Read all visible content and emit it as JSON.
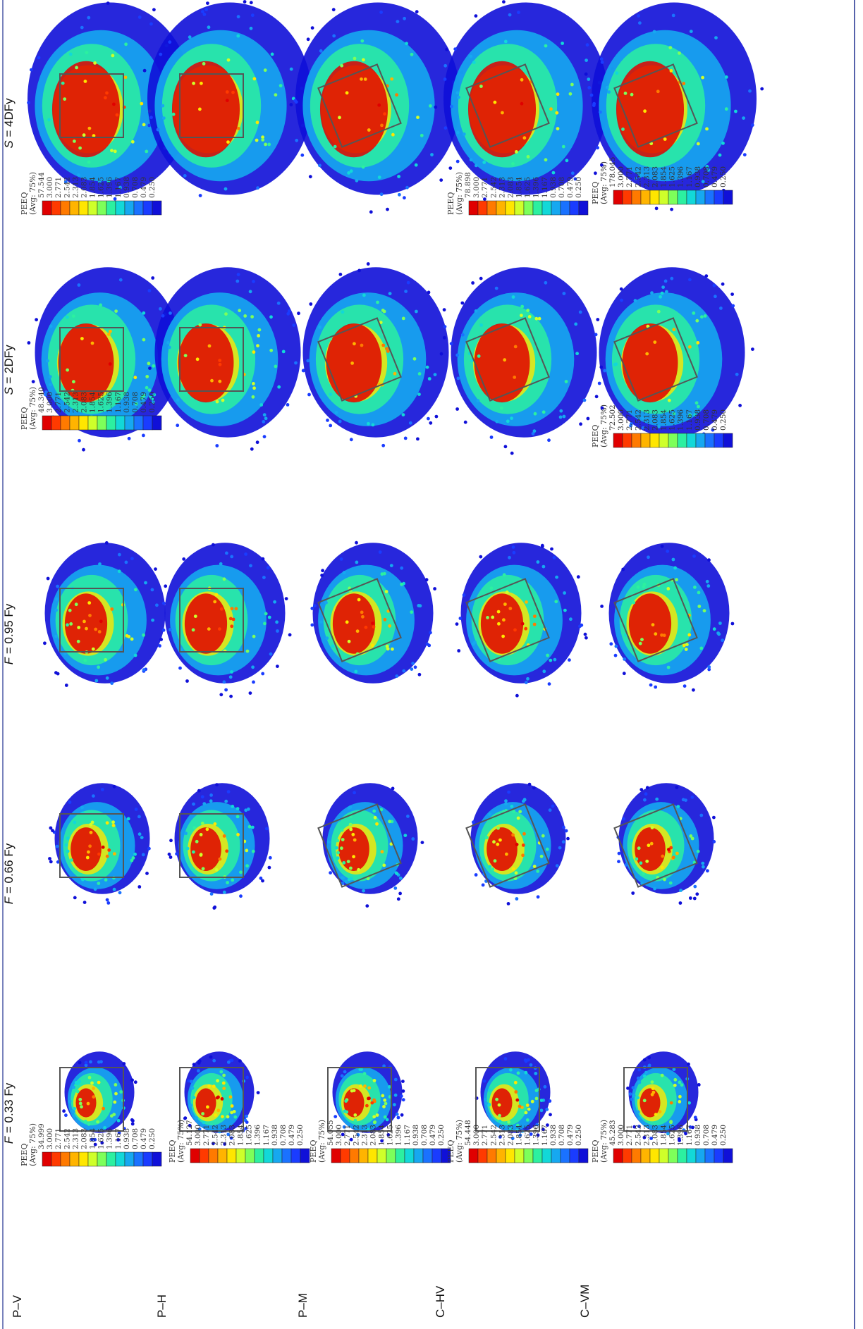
{
  "figure": {
    "column_headers": [
      {
        "var": "F",
        "rest": " = 0.33 Fy"
      },
      {
        "var": "F",
        "rest": " = 0.66 Fy"
      },
      {
        "var": "F",
        "rest": " = 0.95 Fy"
      },
      {
        "var": "S",
        "rest": " = 2DFy"
      },
      {
        "var": "S",
        "rest": " = 4DFy"
      }
    ],
    "row_labels": [
      "P–V",
      "P–H",
      "P–M",
      "C–HV",
      "C–VM"
    ],
    "legend_title": "PEEQ",
    "legend_avg": "(Avg: 75%)",
    "legend_values_common": [
      "3.000",
      "2.771",
      "2.542",
      "2.313",
      "2.083",
      "1.854",
      "1.625",
      "1.396",
      "1.167",
      "0.938",
      "0.708",
      "0.479",
      "0.250"
    ],
    "legend_max": [
      [
        "34.999",
        null,
        null,
        null,
        null
      ],
      [
        "54.127",
        null,
        null,
        null,
        null
      ],
      [
        "54.055",
        null,
        null,
        null,
        null
      ],
      [
        "54.448",
        null,
        null,
        null,
        null
      ],
      [
        "45.283",
        null,
        null,
        null,
        null
      ]
    ],
    "legend_max_extra": {
      "0_3": "48.340",
      "0_4": "57.544",
      "3_4": "78.898",
      "4_3": "72.502",
      "4_4": "178.045"
    },
    "colors": {
      "frame": "#1f2f8f",
      "colormap": [
        "#e00000",
        "#ff3a00",
        "#ff7a00",
        "#ffb400",
        "#ffe600",
        "#cfff2a",
        "#7dff5a",
        "#2cf0a0",
        "#12d8d8",
        "#16a8f0",
        "#1a72ff",
        "#1a3cff",
        "#1010d8"
      ]
    }
  }
}
